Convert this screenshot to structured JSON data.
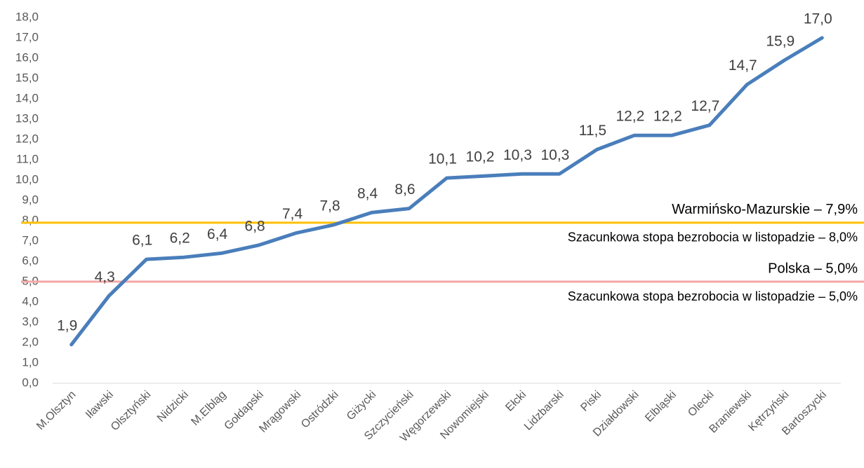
{
  "chart_data": {
    "type": "line",
    "categories": [
      "M.Olsztyn",
      "Iławski",
      "Olsztyński",
      "Nidzicki",
      "M.Elbląg",
      "Gołdapski",
      "Mrągowski",
      "Ostródzki",
      "Giżycki",
      "Szczycieński",
      "Węgorzewski",
      "Nowomiejski",
      "Ełcki",
      "Lidzbarski",
      "Piski",
      "Działdowski",
      "Elbląski",
      "Olecki",
      "Braniewski",
      "Kętrzyński",
      "Bartoszycki"
    ],
    "values": [
      1.9,
      4.3,
      6.1,
      6.2,
      6.4,
      6.8,
      7.4,
      7.8,
      8.4,
      8.6,
      10.1,
      10.2,
      10.3,
      10.3,
      11.5,
      12.2,
      12.2,
      12.7,
      14.7,
      15.9,
      17.0
    ],
    "value_labels": [
      "1,9",
      "4,3",
      "6,1",
      "6,2",
      "6,4",
      "6,8",
      "7,4",
      "7,8",
      "8,4",
      "8,6",
      "10,1",
      "10,2",
      "10,3",
      "10,3",
      "11,5",
      "12,2",
      "12,2",
      "12,7",
      "14,7",
      "15,9",
      "17,0"
    ],
    "color": "#4a7ebb",
    "ylim": [
      0,
      18
    ],
    "yticks": [
      {
        "value": 0,
        "label": "0,0"
      },
      {
        "value": 1,
        "label": "1,0"
      },
      {
        "value": 2,
        "label": "2,0"
      },
      {
        "value": 3,
        "label": "3,0"
      },
      {
        "value": 4,
        "label": "4,0"
      },
      {
        "value": 5,
        "label": "5,0"
      },
      {
        "value": 6,
        "label": "6,0"
      },
      {
        "value": 7,
        "label": "7,0"
      },
      {
        "value": 8,
        "label": "8,0"
      },
      {
        "value": 9,
        "label": "9,0"
      },
      {
        "value": 10,
        "label": "10,0"
      },
      {
        "value": 11,
        "label": "11,0"
      },
      {
        "value": 12,
        "label": "12,0"
      },
      {
        "value": 13,
        "label": "13,0"
      },
      {
        "value": 14,
        "label": "14,0"
      },
      {
        "value": 15,
        "label": "15,0"
      },
      {
        "value": 16,
        "label": "16,0"
      },
      {
        "value": 17,
        "label": "17,0"
      },
      {
        "value": 18,
        "label": "18,0"
      }
    ],
    "grid": false,
    "reference_lines": [
      {
        "value": 7.9,
        "label": "Warmińsko-Mazurskie – 7,9%",
        "sublabel": "Szacunkowa stopa bezrobocia w listopadzie – 8,0%",
        "color": "#ffc000"
      },
      {
        "value": 5.0,
        "label": "Polska – 5,0%",
        "sublabel": "Szacunkowa stopa bezrobocia w listopadzie – 5,0%",
        "color": "#f4a6a6"
      }
    ]
  }
}
